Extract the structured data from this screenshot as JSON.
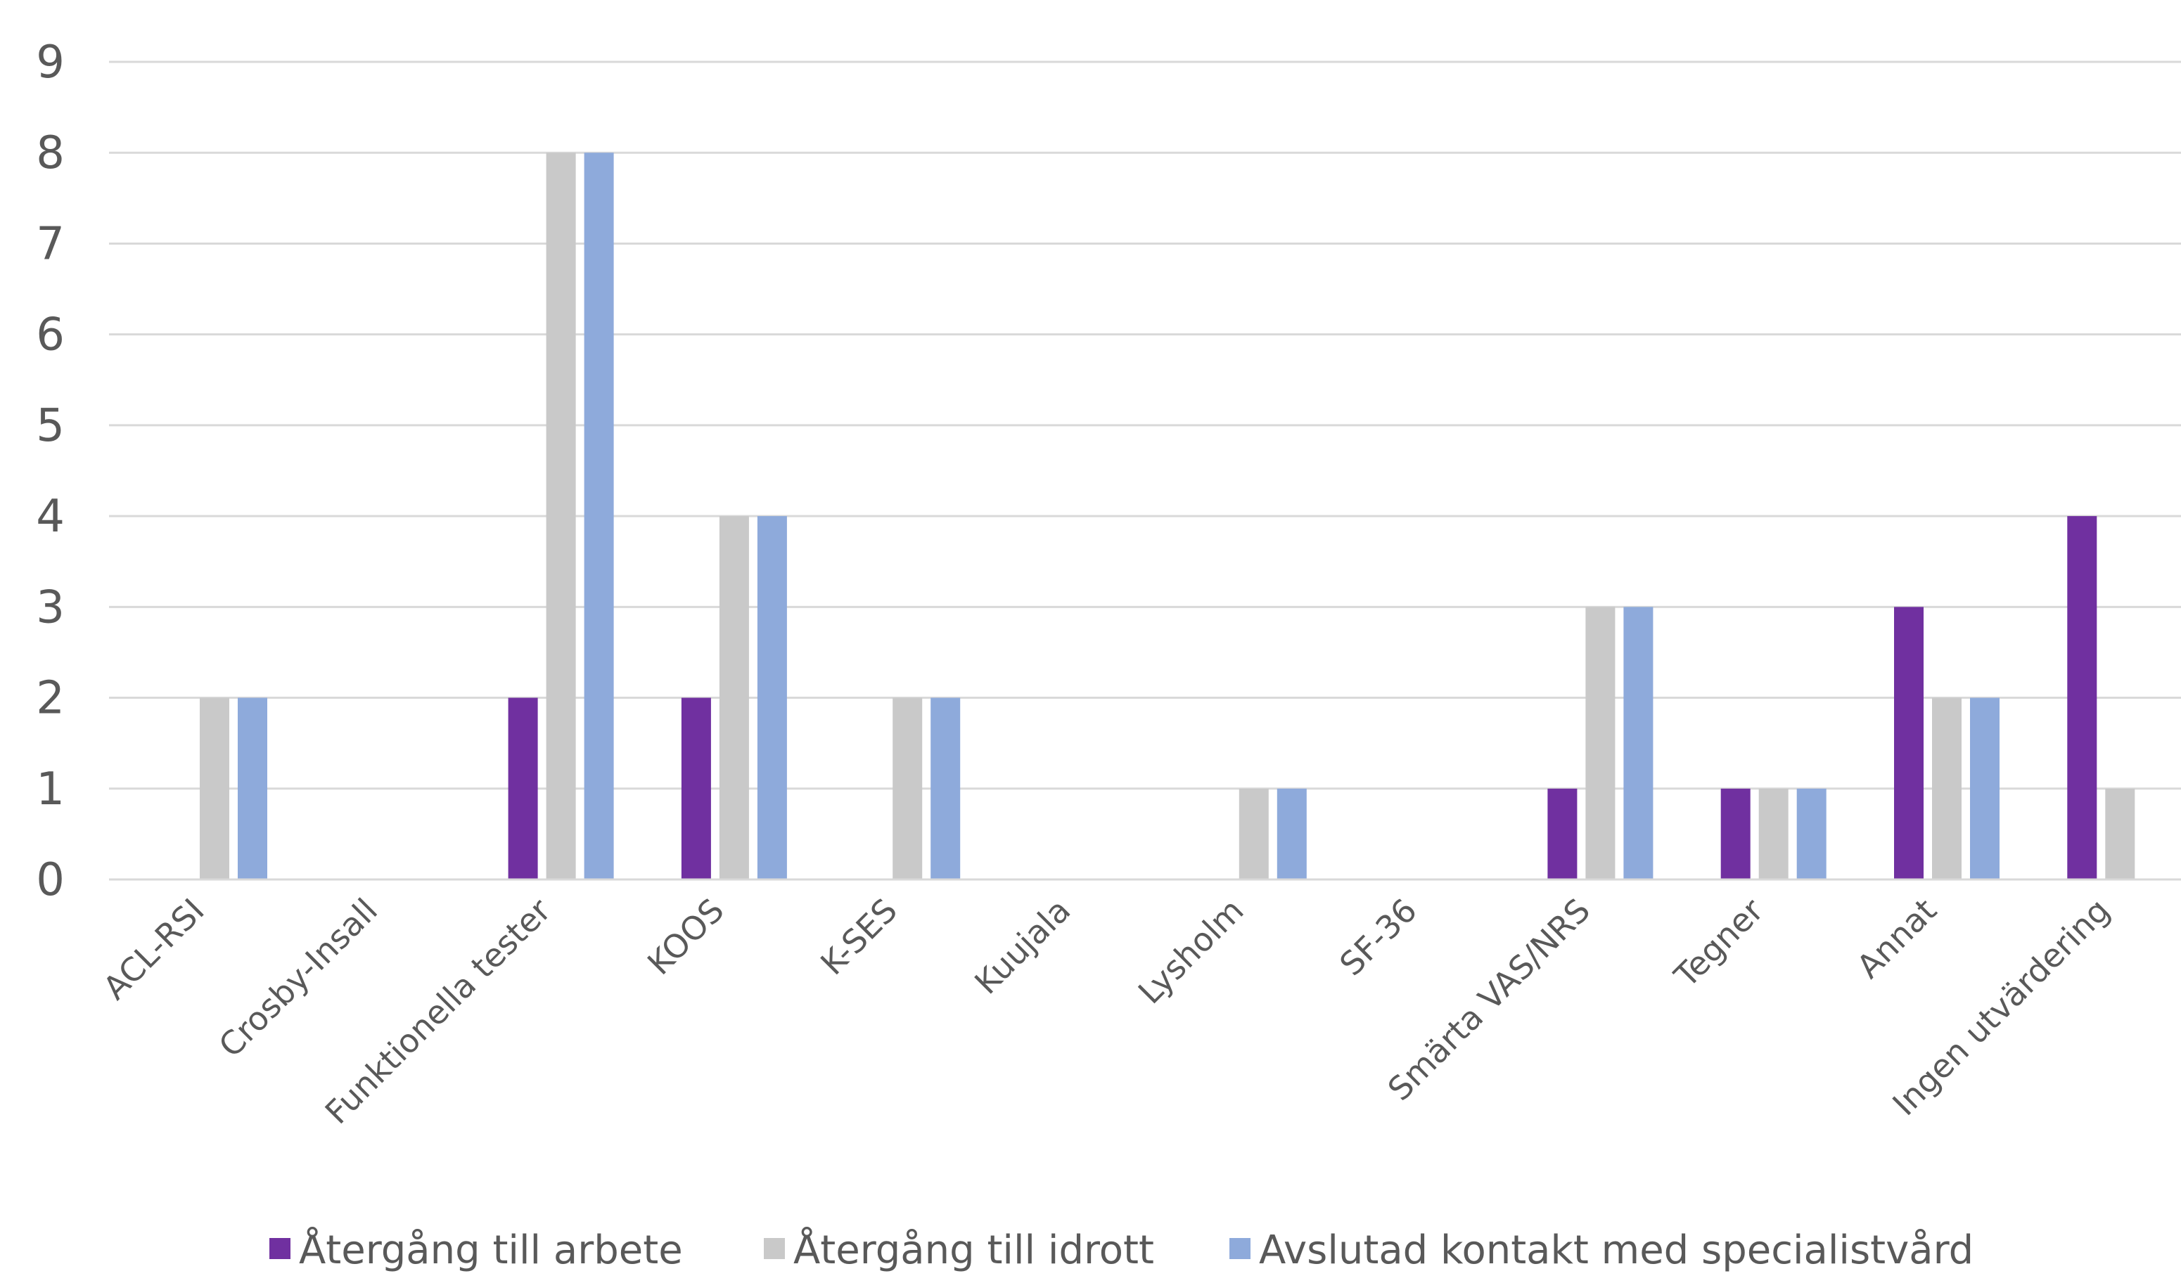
{
  "chart_data": {
    "type": "bar",
    "title": "",
    "xlabel": "",
    "ylabel": "",
    "ylim": [
      0,
      9
    ],
    "yticks": [
      0,
      1,
      2,
      3,
      4,
      5,
      6,
      7,
      8,
      9
    ],
    "grid": true,
    "legend_position": "bottom",
    "categories": [
      "ACL-RSI",
      "Crosby-Insall",
      "Funktionella tester",
      "KOOS",
      "K-SES",
      "Kuujala",
      "Lysholm",
      "SF-36",
      "Smärta VAS/NRS",
      "Tegner",
      "Annat",
      "Ingen utvärdering"
    ],
    "series": [
      {
        "name": "Återgång till arbete",
        "color": "#7030a0",
        "values": [
          0,
          0,
          2,
          2,
          0,
          0,
          0,
          0,
          1,
          1,
          3,
          4
        ]
      },
      {
        "name": "Återgång till idrott",
        "color": "#c9c9c9",
        "values": [
          2,
          0,
          8,
          4,
          2,
          0,
          1,
          0,
          3,
          1,
          2,
          1
        ]
      },
      {
        "name": "Avslutad kontakt med specialistvård",
        "color": "#8eaadb",
        "values": [
          2,
          0,
          8,
          4,
          2,
          0,
          1,
          0,
          3,
          1,
          2,
          0
        ]
      }
    ]
  }
}
